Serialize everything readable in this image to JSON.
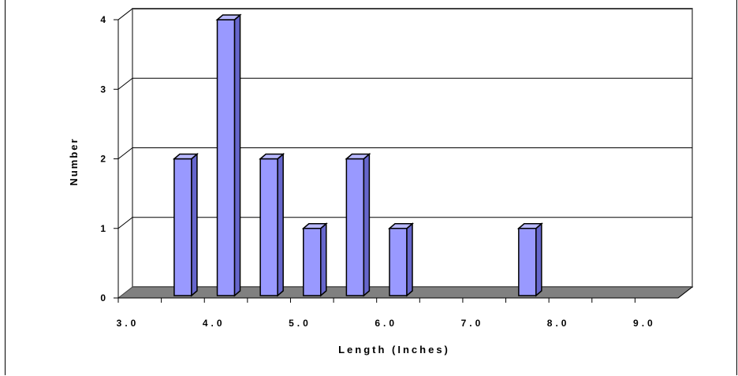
{
  "chart_data": {
    "type": "bar",
    "title": "",
    "xlabel": "Length (Inches)",
    "ylabel": "Number",
    "x_tick_labels": [
      "3.0",
      "4.0",
      "5.0",
      "6.0",
      "7.0",
      "8.0",
      "9.0"
    ],
    "y_tick_labels": [
      "0",
      "1",
      "2",
      "3",
      "4"
    ],
    "ylim": [
      0,
      4
    ],
    "xlim": [
      3.0,
      9.5
    ],
    "grid": true,
    "legend": "none",
    "bar_color": "#9999ff",
    "bars": [
      {
        "x": 3.75,
        "value": 2
      },
      {
        "x": 4.25,
        "value": 4
      },
      {
        "x": 4.75,
        "value": 2
      },
      {
        "x": 5.25,
        "value": 1
      },
      {
        "x": 5.75,
        "value": 2
      },
      {
        "x": 6.25,
        "value": 1
      },
      {
        "x": 7.75,
        "value": 1
      }
    ]
  }
}
